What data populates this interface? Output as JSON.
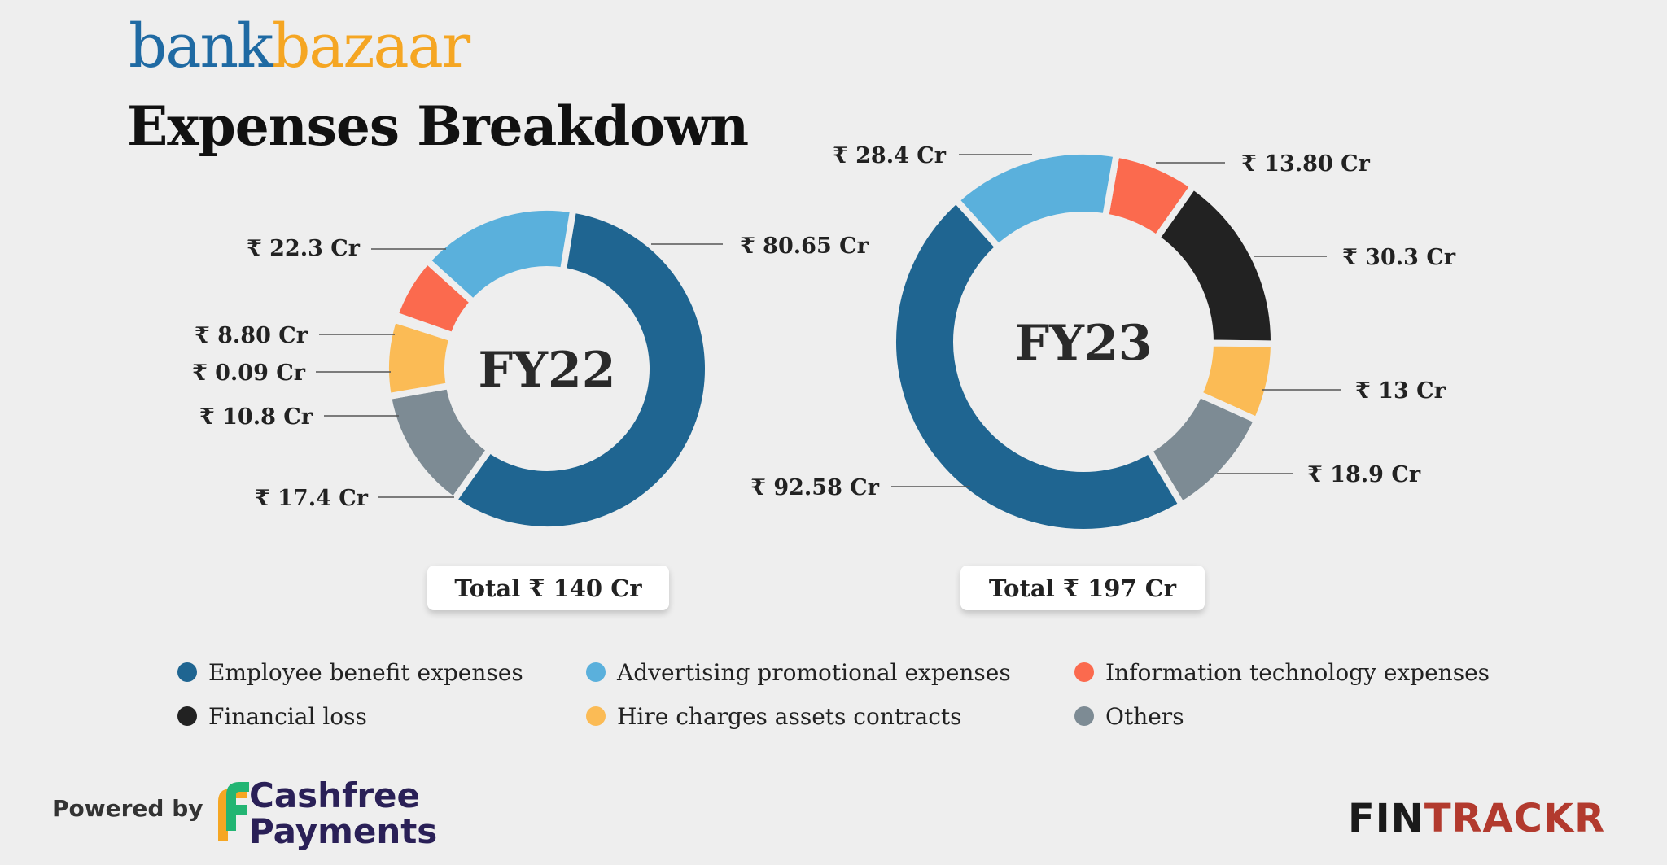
{
  "brand": {
    "part1": "bank",
    "part2": "bazaar"
  },
  "title": "Expenses Breakdown",
  "chart_data": [
    {
      "type": "pie",
      "subtype": "donut",
      "center_label": "FY22",
      "total_label": "Total ₹ 140 Cr",
      "categories": [
        "Employee benefit expenses",
        "Others",
        "Hire charges assets contracts",
        "Financial loss",
        "Information technology expenses",
        "Advertising promotional expenses"
      ],
      "values": [
        80.65,
        17.4,
        10.8,
        0.09,
        8.8,
        22.3
      ],
      "value_labels": [
        "₹ 80.65 Cr",
        "₹ 17.4 Cr",
        "₹ 10.8 Cr",
        "₹ 0.09 Cr",
        "₹ 8.80 Cr",
        "₹ 22.3 Cr"
      ]
    },
    {
      "type": "pie",
      "subtype": "donut",
      "center_label": "FY23",
      "total_label": "Total ₹ 197 Cr",
      "categories": [
        "Information technology expenses",
        "Financial loss",
        "Hire charges assets contracts",
        "Others",
        "Employee benefit expenses",
        "Advertising promotional expenses"
      ],
      "values": [
        13.8,
        30.3,
        13,
        18.9,
        92.58,
        28.4
      ],
      "value_labels": [
        "₹ 13.80 Cr",
        "₹ 30.3 Cr",
        "₹ 13 Cr",
        "₹ 18.9 Cr",
        "₹ 92.58 Cr",
        "₹ 28.4 Cr"
      ]
    }
  ],
  "legend": [
    {
      "label": "Employee benefit expenses",
      "color": "#1f6591"
    },
    {
      "label": "Advertising promotional expenses",
      "color": "#5ab0dc"
    },
    {
      "label": "Information technology expenses",
      "color": "#fb6a4e"
    },
    {
      "label": "Financial loss",
      "color": "#222222"
    },
    {
      "label": "Hire charges assets contracts",
      "color": "#fbbb55"
    },
    {
      "label": "Others",
      "color": "#7d8b94"
    }
  ],
  "colors": {
    "Employee benefit expenses": "#1f6591",
    "Advertising promotional expenses": "#5ab0dc",
    "Information technology expenses": "#fb6a4e",
    "Financial loss": "#222222",
    "Hire charges assets contracts": "#fbbb55",
    "Others": "#7d8b94"
  },
  "footer": {
    "powered_by": "Powered by",
    "cashfree_line1": "Cashfree",
    "cashfree_line2": "Payments",
    "fintrackr_part1": "FIN",
    "fintrackr_part2": "TRACKR"
  }
}
